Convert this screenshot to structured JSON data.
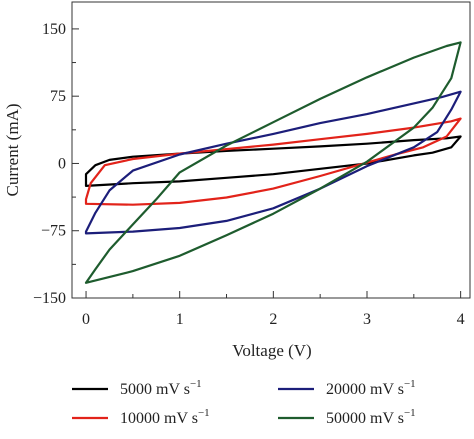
{
  "chart_data": {
    "type": "line",
    "xlabel": "Voltage (V)",
    "ylabel": "Current (mA)",
    "xlim": [
      -0.15,
      4.1
    ],
    "ylim": [
      -150,
      180
    ],
    "xticks": [
      0,
      1,
      2,
      3,
      4
    ],
    "xtick_labels": [
      "0",
      "1",
      "2",
      "3",
      "4"
    ],
    "yticks": [
      150,
      75,
      0,
      -75,
      -150
    ],
    "ytick_labels": [
      "150",
      "75",
      "0",
      "−75",
      "−150"
    ],
    "grid": false,
    "legend_position": "bottom",
    "series": [
      {
        "name": "5000 mV s⁻¹",
        "legend_main": "5000 mV s",
        "legend_sup": "−1",
        "color": "#000000",
        "upper": [
          [
            0.0,
            -12
          ],
          [
            0.1,
            -2
          ],
          [
            0.25,
            4
          ],
          [
            0.5,
            7.5
          ],
          [
            1.0,
            11
          ],
          [
            1.5,
            14
          ],
          [
            2.0,
            16.5
          ],
          [
            2.5,
            19
          ],
          [
            3.0,
            22
          ],
          [
            3.5,
            26
          ],
          [
            3.85,
            28
          ],
          [
            4.0,
            30
          ]
        ],
        "lower": [
          [
            4.0,
            30
          ],
          [
            3.9,
            18
          ],
          [
            3.7,
            12
          ],
          [
            3.5,
            9
          ],
          [
            3.0,
            0
          ],
          [
            2.5,
            -6
          ],
          [
            2.0,
            -12
          ],
          [
            1.5,
            -16
          ],
          [
            1.0,
            -20
          ],
          [
            0.5,
            -22
          ],
          [
            0.0,
            -25
          ]
        ]
      },
      {
        "name": "10000 mV s⁻¹",
        "legend_main": "10000 mV s",
        "legend_sup": "−1",
        "color": "#e2231a",
        "upper": [
          [
            0.0,
            -40
          ],
          [
            0.05,
            -22
          ],
          [
            0.2,
            -2
          ],
          [
            0.5,
            5
          ],
          [
            1.0,
            11
          ],
          [
            1.5,
            16
          ],
          [
            2.0,
            21
          ],
          [
            2.5,
            27
          ],
          [
            3.0,
            33
          ],
          [
            3.5,
            40
          ],
          [
            3.9,
            47
          ],
          [
            4.0,
            50
          ]
        ],
        "lower": [
          [
            4.0,
            50
          ],
          [
            3.85,
            30
          ],
          [
            3.6,
            18
          ],
          [
            3.3,
            10
          ],
          [
            3.0,
            1
          ],
          [
            2.5,
            -14
          ],
          [
            2.0,
            -28
          ],
          [
            1.5,
            -38
          ],
          [
            1.0,
            -44
          ],
          [
            0.5,
            -46
          ],
          [
            0.0,
            -45
          ]
        ]
      },
      {
        "name": "20000 mV s⁻¹",
        "legend_main": "20000 mV s",
        "legend_sup": "−1",
        "color": "#1c1e7a",
        "upper": [
          [
            0.0,
            -76
          ],
          [
            0.1,
            -55
          ],
          [
            0.25,
            -30
          ],
          [
            0.5,
            -8
          ],
          [
            1.0,
            10
          ],
          [
            1.5,
            22
          ],
          [
            2.0,
            33
          ],
          [
            2.5,
            45
          ],
          [
            3.0,
            55
          ],
          [
            3.5,
            67
          ],
          [
            3.8,
            74
          ],
          [
            4.0,
            80
          ]
        ],
        "lower": [
          [
            4.0,
            80
          ],
          [
            3.9,
            60
          ],
          [
            3.75,
            35
          ],
          [
            3.5,
            18
          ],
          [
            3.0,
            -3
          ],
          [
            2.5,
            -28
          ],
          [
            2.0,
            -50
          ],
          [
            1.5,
            -64
          ],
          [
            1.0,
            -72
          ],
          [
            0.5,
            -76
          ],
          [
            0.0,
            -78
          ]
        ]
      },
      {
        "name": "50000 mV s⁻¹",
        "legend_main": "50000 mV s",
        "legend_sup": "−1",
        "color": "#1e5c2e",
        "upper": [
          [
            0.0,
            -133
          ],
          [
            0.1,
            -118
          ],
          [
            0.25,
            -96
          ],
          [
            0.5,
            -68
          ],
          [
            0.75,
            -40
          ],
          [
            1.0,
            -10
          ],
          [
            1.5,
            20
          ],
          [
            2.0,
            46
          ],
          [
            2.5,
            72
          ],
          [
            3.0,
            96
          ],
          [
            3.5,
            118
          ],
          [
            3.85,
            131
          ],
          [
            4.0,
            135
          ]
        ],
        "lower": [
          [
            4.0,
            135
          ],
          [
            3.9,
            95
          ],
          [
            3.7,
            62
          ],
          [
            3.5,
            40
          ],
          [
            3.0,
            2
          ],
          [
            2.5,
            -28
          ],
          [
            2.0,
            -56
          ],
          [
            1.5,
            -80
          ],
          [
            1.0,
            -103
          ],
          [
            0.5,
            -120
          ],
          [
            0.0,
            -133
          ]
        ]
      }
    ]
  }
}
